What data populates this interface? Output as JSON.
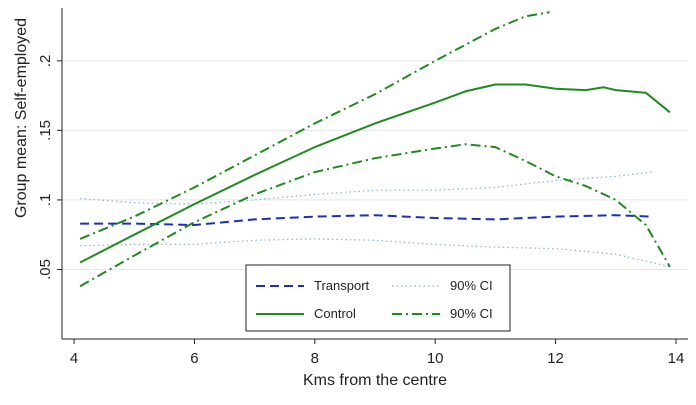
{
  "chart_data": {
    "type": "line",
    "title": "",
    "xlabel": "Kms from the centre",
    "ylabel": "Group mean: Self-employed",
    "xlim": [
      3.8,
      14.2
    ],
    "ylim": [
      0.0,
      0.238
    ],
    "xticks": [
      4,
      6,
      8,
      10,
      12,
      14
    ],
    "yticks": [
      0.05,
      0.1,
      0.15,
      0.2
    ],
    "ytick_labels": [
      ".05",
      ".1",
      ".15",
      ".2"
    ],
    "grid": "horizontal",
    "legend_position": "bottom-center",
    "series": [
      {
        "name": "Transport",
        "color": "#1f2fb4",
        "style": "dashed",
        "x": [
          4.1,
          5.0,
          6.0,
          7.0,
          8.0,
          9.0,
          10.0,
          11.0,
          12.0,
          13.0,
          13.6
        ],
        "y": [
          0.083,
          0.083,
          0.082,
          0.086,
          0.088,
          0.089,
          0.087,
          0.086,
          0.088,
          0.089,
          0.088
        ]
      },
      {
        "name": "90% CI",
        "color": "#8ab4d8",
        "style": "dotted",
        "x": [
          4.1,
          5.0,
          6.0,
          7.0,
          8.0,
          9.0,
          10.0,
          11.0,
          12.0,
          13.0,
          13.6
        ],
        "y": [
          0.101,
          0.098,
          0.097,
          0.1,
          0.104,
          0.107,
          0.107,
          0.109,
          0.114,
          0.117,
          0.12
        ]
      },
      {
        "name": "",
        "color": "#8ab4d8",
        "style": "dotted",
        "x": [
          4.1,
          5.0,
          6.0,
          7.0,
          8.0,
          9.0,
          10.0,
          11.0,
          12.0,
          13.0,
          13.9
        ],
        "y": [
          0.067,
          0.068,
          0.068,
          0.071,
          0.072,
          0.071,
          0.068,
          0.066,
          0.065,
          0.061,
          0.052
        ]
      },
      {
        "name": "Control",
        "color": "#1f8a1f",
        "style": "solid",
        "x": [
          4.1,
          5.0,
          6.0,
          7.0,
          8.0,
          9.0,
          10.0,
          10.5,
          11.0,
          11.5,
          12.0,
          12.5,
          12.8,
          13.0,
          13.5,
          13.9
        ],
        "y": [
          0.055,
          0.075,
          0.097,
          0.118,
          0.138,
          0.155,
          0.17,
          0.178,
          0.183,
          0.183,
          0.18,
          0.179,
          0.181,
          0.179,
          0.177,
          0.163
        ]
      },
      {
        "name": "90% CI",
        "color": "#1f8a1f",
        "style": "dashdot",
        "x": [
          4.1,
          5.0,
          6.0,
          7.0,
          8.0,
          9.0,
          10.0,
          11.0,
          11.5,
          11.9
        ],
        "y": [
          0.072,
          0.088,
          0.109,
          0.132,
          0.155,
          0.176,
          0.2,
          0.223,
          0.232,
          0.235
        ]
      },
      {
        "name": "",
        "color": "#1f8a1f",
        "style": "dashdot",
        "x": [
          4.1,
          5.0,
          6.0,
          7.0,
          8.0,
          9.0,
          10.0,
          10.5,
          11.0,
          11.5,
          12.0,
          12.5,
          13.0,
          13.5,
          13.9
        ],
        "y": [
          0.038,
          0.06,
          0.084,
          0.104,
          0.12,
          0.13,
          0.137,
          0.14,
          0.138,
          0.128,
          0.117,
          0.11,
          0.1,
          0.082,
          0.052
        ]
      }
    ],
    "legend": [
      {
        "label": "Transport",
        "series": 0
      },
      {
        "label": "90% CI",
        "series": 1
      },
      {
        "label": "Control",
        "series": 3
      },
      {
        "label": "90% CI",
        "series": 4
      }
    ]
  }
}
